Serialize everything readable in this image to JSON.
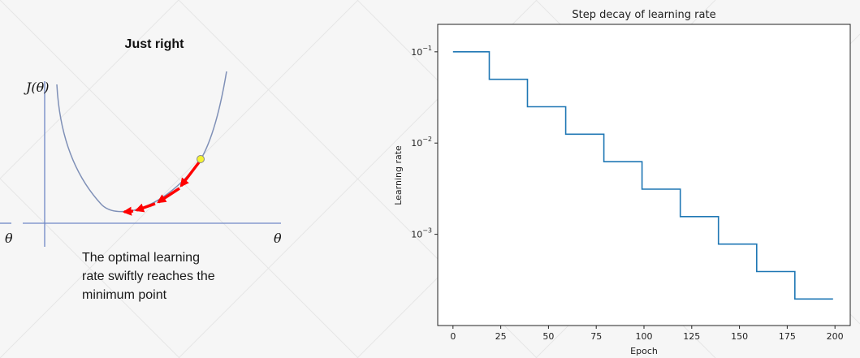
{
  "left_panel": {
    "title": "Just right",
    "y_axis_label": "J(θ)",
    "x_axis_label_left": "θ",
    "x_axis_label_right": "θ",
    "caption_lines": [
      "The optimal learning",
      "rate swiftly reaches the",
      "minimum point"
    ],
    "colors": {
      "curve": "#7f90b7",
      "axis": "#6f88c6",
      "arrow": "#ff0000",
      "point": "#f4f233"
    }
  },
  "chart_data": {
    "type": "line",
    "title": "Step decay of learning rate",
    "xlabel": "Epoch",
    "ylabel": "Learning rate",
    "yscale": "log",
    "xlim": [
      -8,
      208
    ],
    "ylim": [
      0.0001,
      0.2
    ],
    "xticks": [
      0,
      25,
      50,
      75,
      100,
      125,
      150,
      175,
      200
    ],
    "yticks": [
      {
        "value": 0.1,
        "base": "10",
        "exp": "−1"
      },
      {
        "value": 0.01,
        "base": "10",
        "exp": "−2"
      },
      {
        "value": 0.001,
        "base": "10",
        "exp": "−3"
      }
    ],
    "series": [
      {
        "color": "#1f77b4",
        "steps": [
          {
            "x_start": 0,
            "x_end": 19,
            "y": 0.1
          },
          {
            "x_start": 19,
            "x_end": 39,
            "y": 0.05
          },
          {
            "x_start": 39,
            "x_end": 59,
            "y": 0.025
          },
          {
            "x_start": 59,
            "x_end": 79,
            "y": 0.0125
          },
          {
            "x_start": 79,
            "x_end": 99,
            "y": 0.00625
          },
          {
            "x_start": 99,
            "x_end": 119,
            "y": 0.003125
          },
          {
            "x_start": 119,
            "x_end": 139,
            "y": 0.0015625
          },
          {
            "x_start": 139,
            "x_end": 159,
            "y": 0.00078125
          },
          {
            "x_start": 159,
            "x_end": 179,
            "y": 0.000390625
          },
          {
            "x_start": 179,
            "x_end": 199,
            "y": 0.0001953125
          }
        ]
      }
    ],
    "grid": false
  }
}
